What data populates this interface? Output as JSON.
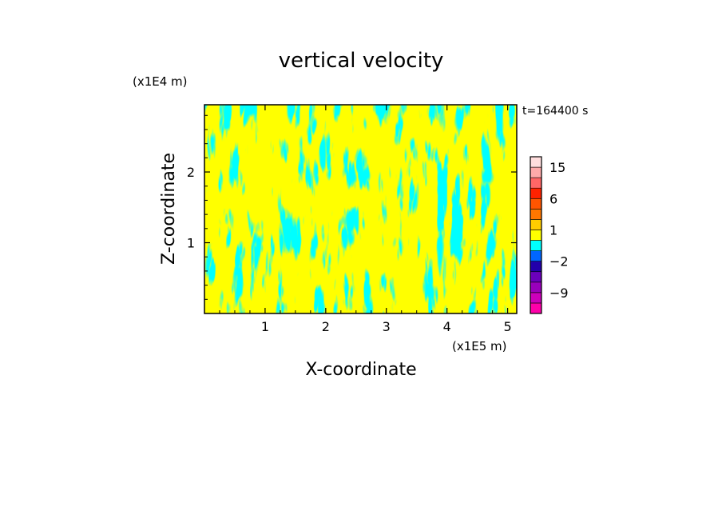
{
  "chart_data": {
    "type": "heatmap",
    "title": "vertical velocity",
    "xlabel": "X-coordinate",
    "ylabel": "Z-coordinate",
    "x_unit": "(x1E5 m)",
    "y_unit": "(x1E4 m)",
    "time_label": "t=164400 s",
    "xlim": [
      0,
      5.15
    ],
    "ylim": [
      0,
      2.95
    ],
    "x_ticks": [
      "1",
      "2",
      "3",
      "4",
      "5"
    ],
    "x_tick_values": [
      1,
      2,
      3,
      4,
      5
    ],
    "y_ticks": [
      "1",
      "2"
    ],
    "y_tick_values": [
      1,
      2
    ],
    "fill_colors": {
      "positive": "#ffff00",
      "negative": "#00ffff"
    },
    "colorbar": {
      "levels": [
        -12,
        -9,
        -6,
        -4,
        -2,
        -1,
        0,
        1,
        2,
        4,
        6,
        9,
        12,
        15,
        20
      ],
      "colors": [
        "#ff00aa",
        "#cc00bb",
        "#9900bb",
        "#6a00bb",
        "#2200aa",
        "#0066ff",
        "#00ffff",
        "#ffff00",
        "#ffcc00",
        "#ff7700",
        "#ff5500",
        "#ff2200",
        "#ff6666",
        "#ffaaaa",
        "#ffdddd"
      ],
      "tick_labels": [
        "15",
        "6",
        "1",
        "−2",
        "−9"
      ],
      "tick_values": [
        15,
        6,
        1,
        -2,
        -9
      ]
    }
  }
}
